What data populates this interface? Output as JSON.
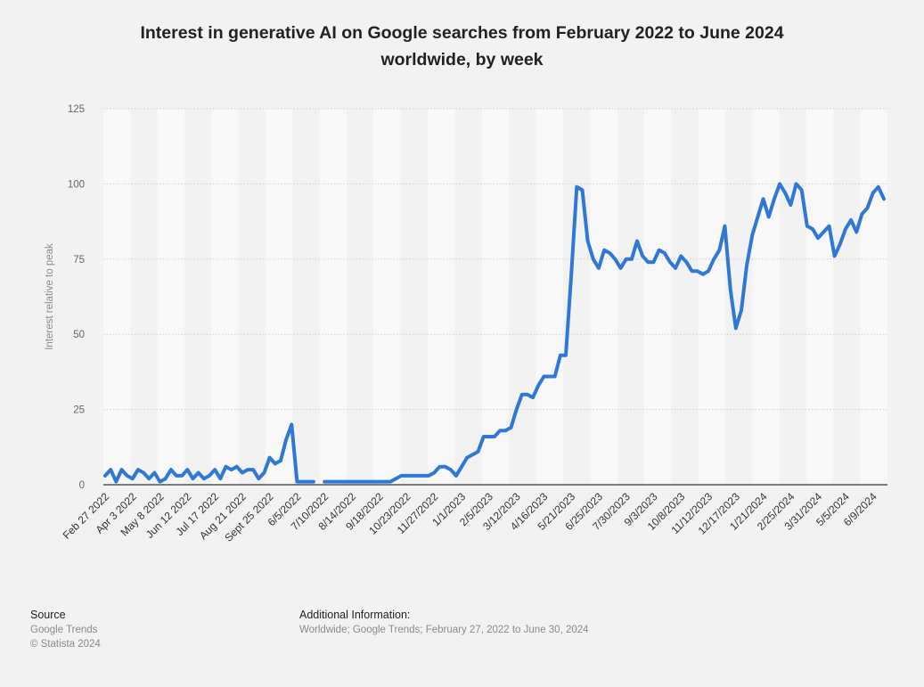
{
  "title_line1": "Interest in generative AI on Google searches from February 2022 to June 2024",
  "title_line2": "worldwide, by week",
  "footer": {
    "source_label": "Source",
    "source_line1": "Google Trends",
    "source_line2": "© Statista 2024",
    "info_label": "Additional Information:",
    "info_text": "Worldwide; Google Trends; February 27, 2022 to June 30, 2024"
  },
  "colors": {
    "line": "#2f78d8",
    "grid": "#cfcfcf",
    "band": "#f8f8f8",
    "background": "#f2f2f2"
  },
  "chart_data": {
    "type": "line",
    "title": "Interest in generative AI on Google searches from February 2022 to June 2024 worldwide, by week",
    "xlabel": "",
    "ylabel": "Interest relative to peak",
    "ylim": [
      0,
      125
    ],
    "yticks": [
      0,
      25,
      50,
      75,
      100,
      125
    ],
    "grid": true,
    "x_tick_labels": [
      "Feb 27 2022",
      "Apr 3 2022",
      "May 8 2022",
      "Jun 12 2022",
      "Jul 17 2022",
      "Aug 21 2022",
      "Sept 25 2022",
      "6/5/2022",
      "7/10/2022",
      "8/14/2022",
      "9/18/2022",
      "10/23/2022",
      "11/27/2022",
      "1/1/2023",
      "2/5/2023",
      "3/12/2023",
      "4/16/2023",
      "5/21/2023",
      "6/25/2023",
      "7/30/2023",
      "9/3/2023",
      "10/8/2023",
      "11/12/2023",
      "12/17/2023",
      "1/21/2024",
      "2/25/2024",
      "3/31/2024",
      "5/5/2024",
      "6/9/2024"
    ],
    "series": [
      {
        "values": [
          3,
          5,
          1,
          5,
          3,
          2,
          5,
          4,
          2,
          4,
          1,
          2,
          5,
          3,
          3,
          5,
          2,
          4,
          2,
          3,
          5,
          2,
          6,
          5,
          6,
          4,
          5,
          5,
          2,
          4,
          9,
          7,
          8,
          15,
          20,
          1,
          1,
          1,
          1,
          null,
          1,
          1,
          1,
          1,
          1,
          1,
          1,
          1,
          1,
          1,
          1,
          1,
          1,
          2,
          3,
          3,
          3,
          3,
          3,
          3,
          4,
          6,
          6,
          5,
          3,
          6,
          9,
          10,
          11,
          16,
          16,
          16,
          18,
          18,
          19,
          25,
          30,
          30,
          29,
          33,
          36,
          36,
          36,
          43,
          43,
          70,
          99,
          98,
          81,
          75,
          72,
          78,
          77,
          75,
          72,
          75,
          75,
          81,
          76,
          74,
          74,
          78,
          77,
          74,
          72,
          76,
          74,
          71,
          71,
          70,
          71,
          75,
          78,
          86,
          65,
          52,
          58,
          73,
          83,
          89,
          95,
          89,
          95,
          100,
          97,
          93,
          100,
          98,
          86,
          85,
          82,
          84,
          86,
          76,
          80,
          85,
          88,
          84,
          90,
          92,
          97,
          99,
          95
        ]
      }
    ]
  }
}
